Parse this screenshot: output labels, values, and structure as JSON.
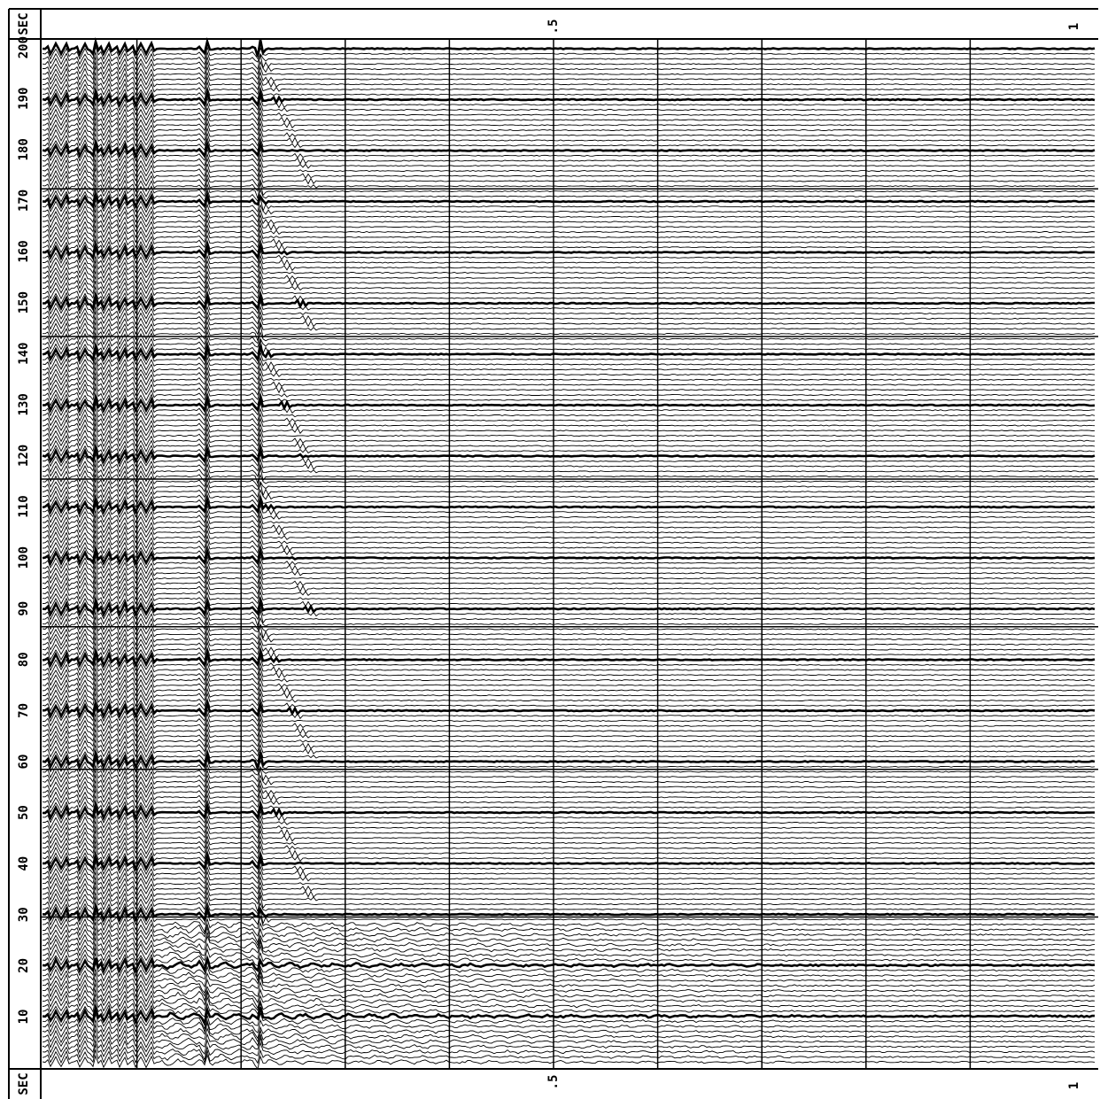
{
  "header": {
    "unit": "SEC",
    "time_labels": [
      ".5",
      "1"
    ]
  },
  "footer": {
    "unit": "SEC",
    "time_labels": [
      ".5",
      "1"
    ]
  },
  "trace_labels": [
    "10",
    "20",
    "30",
    "40",
    "50",
    "60",
    "70",
    "80",
    "90",
    "100",
    "110",
    "120",
    "130",
    "140",
    "150",
    "160",
    "170",
    "180",
    "190",
    "200"
  ]
}
